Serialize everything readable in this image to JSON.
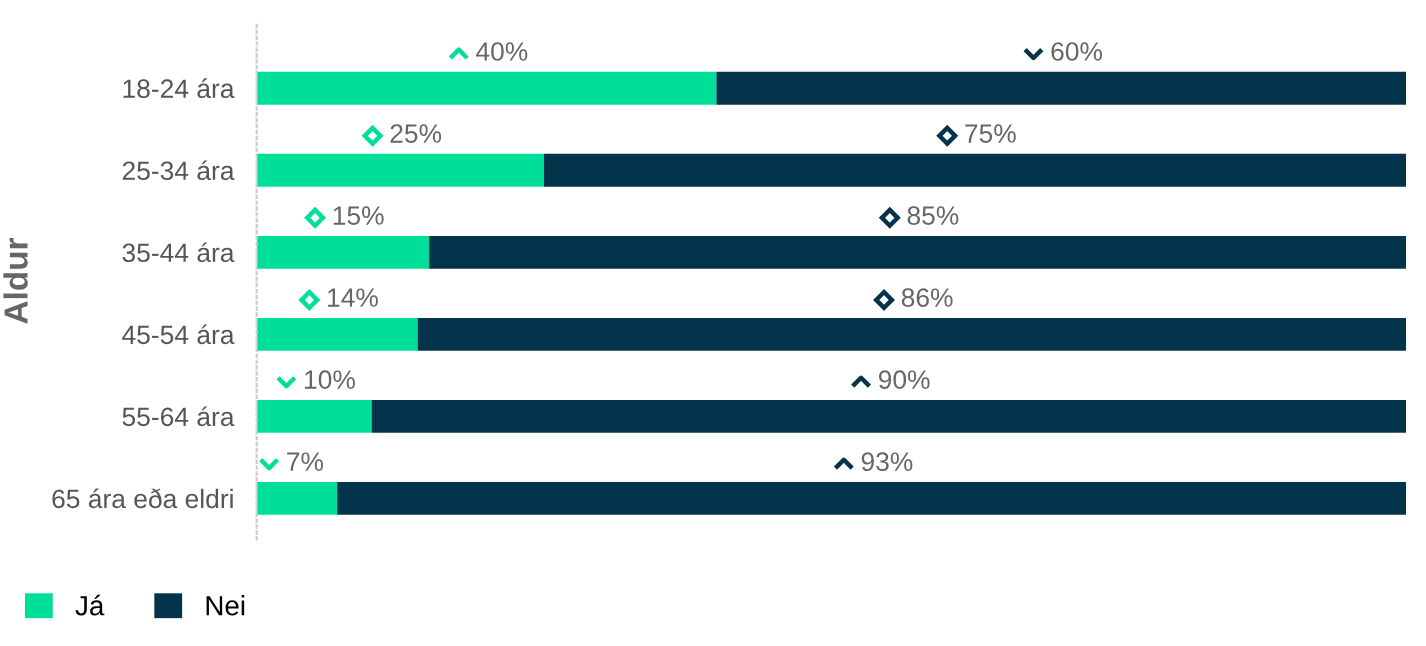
{
  "chart_data": {
    "type": "bar",
    "orientation": "horizontal",
    "stacked": true,
    "ylabel": "Aldur",
    "categories": [
      "18-24 ára",
      "25-34 ára",
      "35-44 ára",
      "45-54 ára",
      "55-64 ára",
      "65 ára eða eldri"
    ],
    "series": [
      {
        "name": "Já",
        "color": "#00df9a",
        "values": [
          40,
          25,
          15,
          14,
          10,
          7
        ],
        "value_labels": [
          "40%",
          "25%",
          "15%",
          "14%",
          "10%",
          "7%"
        ]
      },
      {
        "name": "Nei",
        "color": "#04344c",
        "values": [
          60,
          75,
          85,
          86,
          90,
          93
        ],
        "value_labels": [
          "60%",
          "75%",
          "85%",
          "86%",
          "90%",
          "93%"
        ]
      }
    ],
    "legend": "bottom",
    "grid": false,
    "tick_labels": "y"
  }
}
